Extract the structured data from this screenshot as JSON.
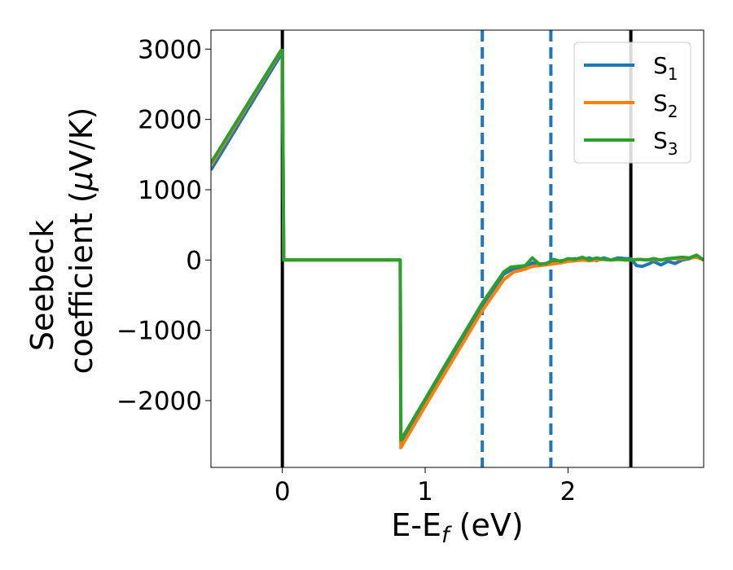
{
  "chart_data": {
    "type": "line",
    "title": "",
    "xlabel_main": "E-E",
    "xlabel_sub": "f",
    "xlabel_unit": " (eV)",
    "ylabel_line1": "Seebeck",
    "ylabel_line2_text": "coefficient  (",
    "ylabel_line2_mu": "μ",
    "ylabel_line2_unit": "V/K)",
    "xlim": [
      -0.5,
      2.95
    ],
    "ylim": [
      -2950,
      3270
    ],
    "xticks": [
      0,
      1,
      2
    ],
    "yticks": [
      -2000,
      -1000,
      0,
      1000,
      2000,
      3000
    ],
    "xtick_labels": [
      "0",
      "1",
      "2"
    ],
    "ytick_labels": [
      "−2000",
      "−1000",
      "0",
      "1000",
      "2000",
      "3000"
    ],
    "grid": false,
    "legend_position": "top-right",
    "vlines": [
      {
        "x": 0.0,
        "style": "solid",
        "color": "#000000"
      },
      {
        "x": 2.44,
        "style": "solid",
        "color": "#000000"
      },
      {
        "x": 1.4,
        "style": "dashed",
        "color": "#1f77b4"
      },
      {
        "x": 1.88,
        "style": "dashed",
        "color": "#1f77b4"
      }
    ],
    "series": [
      {
        "name": "S",
        "sub": "1",
        "color": "#1f77b4",
        "x": [
          -0.5,
          -0.01,
          0.0,
          0.01,
          0.82,
          0.825,
          0.83,
          1.0,
          1.2,
          1.4,
          1.55,
          1.62,
          1.7,
          1.75,
          1.8,
          1.88,
          1.95,
          2.0,
          2.05,
          2.1,
          2.15,
          2.2,
          2.25,
          2.3,
          2.35,
          2.4,
          2.44,
          2.48,
          2.52,
          2.56,
          2.6,
          2.65,
          2.7,
          2.75,
          2.8,
          2.85,
          2.9,
          2.95
        ],
        "y": [
          1280,
          2920,
          2920,
          0,
          0,
          0,
          -2600,
          -2000,
          -1320,
          -640,
          -200,
          -120,
          -110,
          -40,
          -60,
          -40,
          -10,
          0,
          20,
          0,
          30,
          -10,
          30,
          0,
          30,
          20,
          20,
          -80,
          -90,
          -60,
          -20,
          -70,
          -20,
          -50,
          0,
          20,
          60,
          0
        ]
      },
      {
        "name": "S",
        "sub": "2",
        "color": "#ff7f0e",
        "x": [
          -0.5,
          -0.01,
          0.0,
          0.01,
          0.82,
          0.825,
          0.83,
          1.0,
          1.2,
          1.4,
          1.55,
          1.62,
          1.7,
          1.75,
          1.8,
          1.88,
          1.95,
          2.0,
          2.05,
          2.1,
          2.15,
          2.2,
          2.25,
          2.3,
          2.35,
          2.4,
          2.44,
          2.5,
          2.55,
          2.6,
          2.65,
          2.7,
          2.75,
          2.8,
          2.85,
          2.9,
          2.95
        ],
        "y": [
          1350,
          2970,
          2970,
          0,
          0,
          0,
          -2670,
          -2080,
          -1400,
          -720,
          -280,
          -170,
          -130,
          -90,
          -80,
          -60,
          -40,
          -20,
          -10,
          0,
          -10,
          0,
          10,
          0,
          10,
          0,
          0,
          10,
          0,
          10,
          0,
          20,
          20,
          20,
          30,
          40,
          0
        ]
      },
      {
        "name": "S",
        "sub": "3",
        "color": "#2ca02c",
        "x": [
          -0.5,
          -0.01,
          0.0,
          0.01,
          0.82,
          0.825,
          0.83,
          1.0,
          1.2,
          1.4,
          1.55,
          1.6,
          1.65,
          1.7,
          1.75,
          1.8,
          1.85,
          1.9,
          1.95,
          2.0,
          2.05,
          2.1,
          2.15,
          2.2,
          2.25,
          2.3,
          2.35,
          2.4,
          2.44,
          2.5,
          2.55,
          2.6,
          2.65,
          2.7,
          2.75,
          2.8,
          2.85,
          2.9,
          2.95
        ],
        "y": [
          1380,
          2980,
          2980,
          0,
          0,
          0,
          -2560,
          -1980,
          -1290,
          -610,
          -170,
          -100,
          -90,
          -80,
          30,
          -60,
          -50,
          10,
          -20,
          20,
          10,
          40,
          0,
          30,
          10,
          0,
          10,
          0,
          0,
          10,
          0,
          20,
          0,
          20,
          30,
          40,
          30,
          70,
          0
        ]
      }
    ]
  }
}
